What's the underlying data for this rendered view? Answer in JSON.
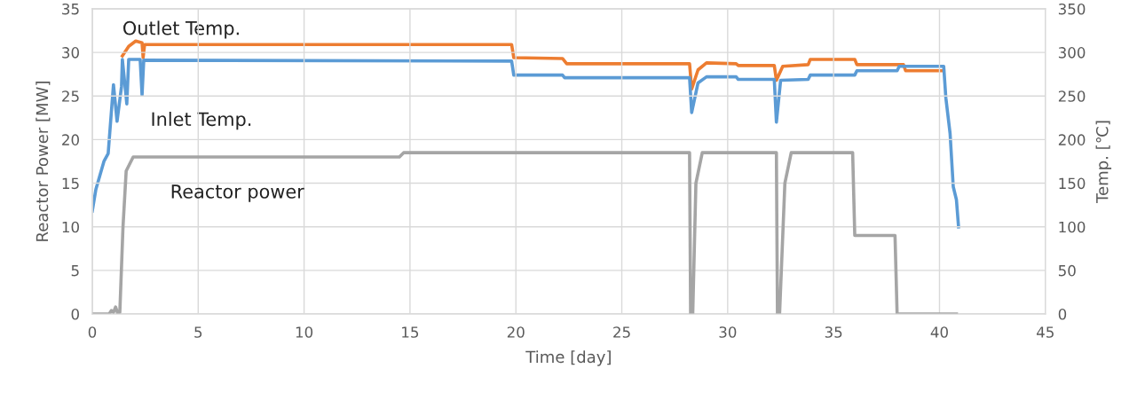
{
  "chart_data": {
    "type": "line",
    "xlabel": "Time [day]",
    "ylabel": "Reactor Power [MW]",
    "y2label": "Temp. [℃]",
    "xlim": [
      0,
      45
    ],
    "xticks": [
      0,
      5,
      10,
      15,
      20,
      25,
      30,
      35,
      40,
      45
    ],
    "ylim": [
      0,
      35
    ],
    "yticks": [
      0,
      5,
      10,
      15,
      20,
      25,
      30,
      35
    ],
    "y2lim": [
      0,
      350
    ],
    "y2ticks": [
      0,
      50,
      100,
      150,
      200,
      250,
      300,
      350
    ],
    "grid": true,
    "legend": false,
    "marker": "none",
    "line_style": "solid",
    "series": [
      {
        "axis": "y",
        "name": "Reactor power",
        "color": "#a5a5a5",
        "x": [
          0,
          0.8,
          0.9,
          1.0,
          1.1,
          1.2,
          1.3,
          1.45,
          1.6,
          1.93,
          3,
          14.5,
          14.7,
          28.2,
          28.25,
          28.35,
          28.5,
          28.8,
          32.3,
          32.35,
          32.45,
          32.7,
          33.0,
          35.9,
          36.0,
          37.9,
          38.0,
          40.8
        ],
        "values": [
          0,
          0,
          0.4,
          0.2,
          0.8,
          0.1,
          0.2,
          10,
          16.4,
          18,
          18,
          18,
          18.5,
          18.5,
          0,
          0,
          15,
          18.5,
          18.5,
          0,
          0,
          15,
          18.5,
          18.5,
          9,
          9,
          0,
          0
        ]
      },
      {
        "axis": "y2",
        "name": "Outlet Temp.",
        "color": "#ed7d31",
        "x": [
          1.42,
          1.72,
          2.05,
          2.35,
          2.4,
          2.47,
          19.8,
          19.9,
          22.2,
          22.4,
          28.2,
          28.3,
          28.6,
          29.0,
          30.4,
          30.5,
          32.2,
          32.3,
          32.6,
          33.8,
          33.9,
          36.0,
          36.1,
          38.3,
          38.4,
          40.2
        ],
        "values": [
          296,
          307,
          313,
          311,
          294,
          309,
          309,
          294,
          293,
          287,
          287,
          258,
          280,
          288,
          287,
          285,
          285,
          268,
          284,
          286,
          292,
          292,
          286,
          286,
          279,
          279
        ]
      },
      {
        "axis": "y2",
        "name": "Inlet Temp.",
        "color": "#5b9bd5",
        "x": [
          0,
          0.17,
          0.55,
          0.75,
          1.0,
          1.17,
          1.38,
          1.42,
          1.63,
          1.72,
          2.26,
          2.35,
          2.43,
          19.8,
          19.9,
          22.2,
          22.3,
          28.2,
          28.3,
          28.6,
          29.0,
          30.4,
          30.5,
          32.2,
          32.3,
          32.5,
          33.8,
          33.9,
          36.0,
          36.1,
          38.0,
          38.1,
          40.2,
          40.3,
          40.5,
          40.65,
          40.8,
          40.9
        ],
        "values": [
          118,
          143,
          175,
          184,
          263,
          221,
          261,
          292,
          241,
          292,
          292,
          251,
          291,
          290,
          274,
          274,
          271,
          271,
          231,
          265,
          272,
          272,
          269,
          269,
          220,
          268,
          269,
          274,
          274,
          279,
          279,
          284,
          284,
          248,
          207,
          146,
          131,
          100
        ]
      }
    ]
  }
}
